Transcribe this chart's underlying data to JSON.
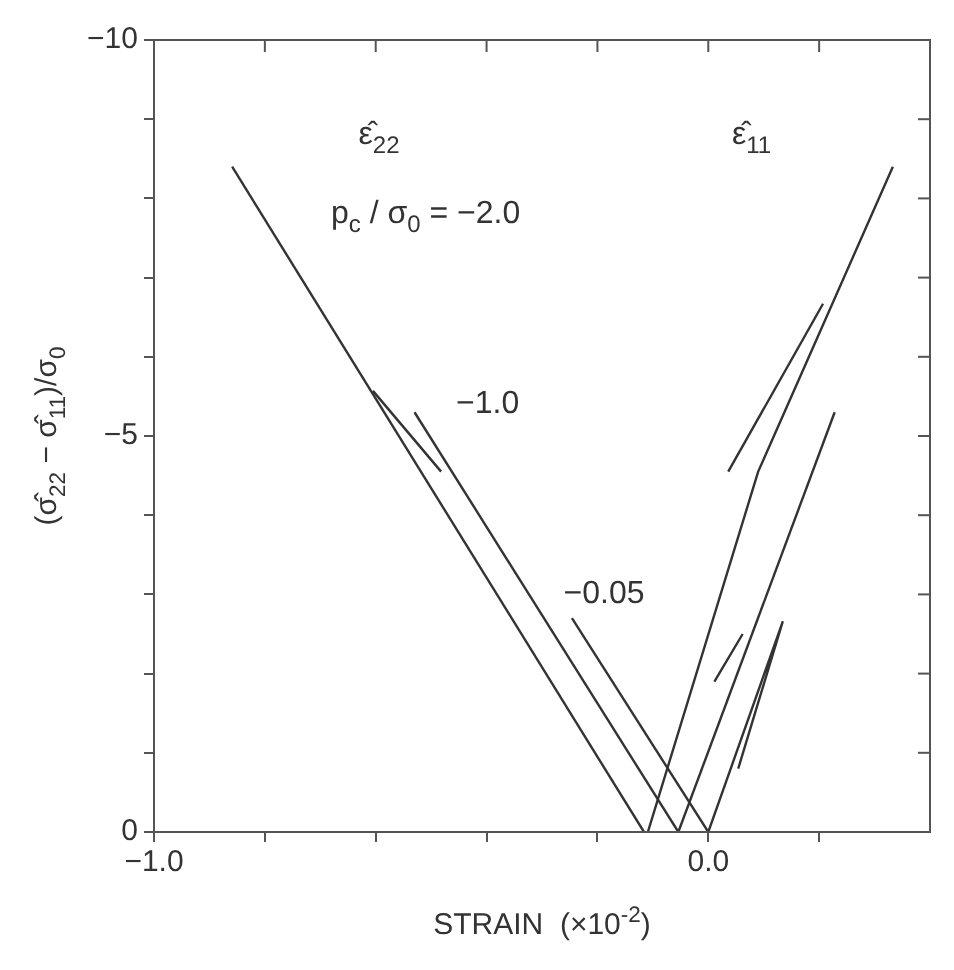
{
  "chart_data": {
    "type": "line",
    "xlabel": "STRAIN  (×10$^{-2}$)",
    "ylabel": "(σ̂$_{22}$ − σ̂$_{11}$)/σ$_{0}$",
    "marker": "none",
    "line_style": "solid",
    "grid": false,
    "legend": false,
    "xlim": [
      -1.0,
      0.4
    ],
    "xticks": [
      {
        "value": -1.0,
        "label": "−1.0"
      },
      {
        "value": -0.8,
        "label": null
      },
      {
        "value": -0.6,
        "label": null
      },
      {
        "value": -0.4,
        "label": null
      },
      {
        "value": -0.2,
        "label": null
      },
      {
        "value": 0,
        "label": "0.0"
      },
      {
        "value": 0.2,
        "label": null
      }
    ],
    "ylim": [
      0,
      -10
    ],
    "yticks": [
      0,
      {
        "value": -1,
        "label": null
      },
      {
        "value": -2,
        "label": null
      },
      {
        "value": -3,
        "label": null
      },
      {
        "value": -4,
        "label": null
      },
      {
        "value": -5,
        "label": "−5"
      },
      {
        "value": -6,
        "label": null
      },
      {
        "value": -7,
        "label": null
      },
      {
        "value": -8,
        "label": null
      },
      {
        "value": -9,
        "label": null
      },
      {
        "value": -10,
        "label": "−10"
      }
    ],
    "series": [
      {
        "color": "#333333",
        "x": [
          -0.859,
          -0.116
        ],
        "values": [
          -8.4,
          0
        ]
      },
      {
        "color": "#333333",
        "x": [
          -0.605,
          -0.482
        ],
        "values": [
          -5.57,
          -4.55
        ]
      },
      {
        "color": "#333333",
        "x": [
          -0.53,
          -0.054
        ],
        "values": [
          -5.3,
          0
        ]
      },
      {
        "color": "#333333",
        "x": [
          -0.246,
          0
        ],
        "values": [
          -2.7,
          0
        ]
      },
      {
        "color": "#333333",
        "x": [
          -0.109,
          0.09,
          0.333
        ],
        "values": [
          0,
          -4.55,
          -8.4
        ]
      },
      {
        "color": "#333333",
        "x": [
          0.036,
          0.207
        ],
        "values": [
          -4.55,
          -6.67
        ]
      },
      {
        "color": "#333333",
        "x": [
          -0.054,
          0.228
        ],
        "values": [
          0,
          -5.3
        ]
      },
      {
        "color": "#333333",
        "x": [
          0,
          0.134,
          0.054
        ],
        "values": [
          0,
          -2.65,
          -0.8
        ]
      },
      {
        "color": "#333333",
        "x": [
          0.011,
          0.062
        ],
        "values": [
          -1.9,
          -2.5
        ]
      }
    ],
    "annotations": [
      "ε̂$_{22}$",
      "ε̂$_{11}$",
      "p$_{c}$ / σ$_{0}$ = −2.0",
      "−1.0",
      "−0.05"
    ]
  }
}
